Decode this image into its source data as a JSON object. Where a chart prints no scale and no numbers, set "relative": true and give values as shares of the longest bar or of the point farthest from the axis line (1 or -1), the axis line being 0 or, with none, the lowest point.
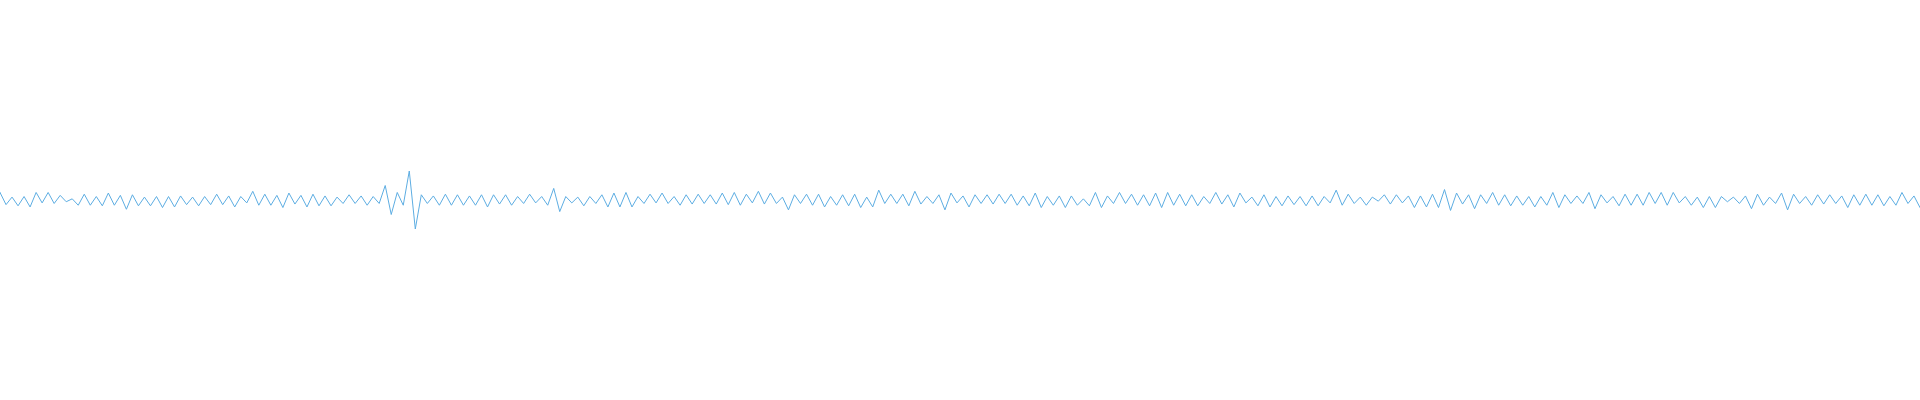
{
  "chart_data": {
    "type": "line",
    "relative": true,
    "marker": "none",
    "categories": [
      null,
      null,
      null,
      null,
      null,
      null,
      null,
      null,
      null,
      null,
      null,
      null,
      null,
      null,
      null,
      null,
      null,
      null,
      null,
      null,
      null,
      null,
      null,
      null,
      null,
      null,
      null,
      null,
      null,
      null,
      null,
      null,
      null,
      null,
      null,
      null,
      null,
      null,
      null,
      null,
      null,
      null,
      null,
      null,
      null,
      null,
      null,
      null,
      null,
      null,
      null,
      null,
      null,
      null,
      null,
      null,
      null,
      null,
      null,
      null,
      null,
      null,
      null,
      null,
      null,
      null,
      null,
      null,
      null,
      null,
      null,
      null,
      null,
      null,
      null,
      null,
      null,
      null,
      null,
      null,
      null,
      null,
      null,
      null,
      null,
      null,
      null,
      null,
      null,
      null,
      null,
      null,
      null,
      null,
      null,
      null,
      null,
      null,
      null,
      null,
      null,
      null,
      null,
      null,
      null,
      null,
      null,
      null,
      null,
      null,
      null,
      null,
      null,
      null,
      null,
      null,
      null,
      null,
      null,
      null,
      null,
      null,
      null,
      null,
      null,
      null,
      null,
      null,
      null,
      null,
      null,
      null,
      null,
      null,
      null,
      null,
      null,
      null,
      null,
      null,
      null,
      null,
      null,
      null,
      null,
      null,
      null,
      null,
      null,
      null,
      null,
      null,
      null,
      null,
      null,
      null,
      null,
      null,
      null,
      null,
      null,
      null,
      null,
      null,
      null,
      null,
      null,
      null,
      null,
      null,
      null,
      null,
      null,
      null,
      null,
      null,
      null,
      null,
      null,
      null,
      null,
      null,
      null,
      null,
      null,
      null,
      null,
      null,
      null,
      null,
      null,
      null,
      null,
      null,
      null,
      null,
      null,
      null,
      null,
      null,
      null,
      null,
      null,
      null,
      null,
      null,
      null,
      null,
      null,
      null,
      null,
      null,
      null,
      null,
      null,
      null,
      null,
      null,
      null,
      null,
      null,
      null,
      null,
      null,
      null,
      null,
      null,
      null,
      null,
      null,
      null,
      null,
      null,
      null,
      null,
      null,
      null,
      null,
      null,
      null,
      null,
      null,
      null,
      null,
      null,
      null,
      null,
      null,
      null,
      null,
      null,
      null,
      null,
      null,
      null,
      null,
      null,
      null,
      null,
      null,
      null,
      null,
      null,
      null,
      null,
      null,
      null,
      null,
      null,
      null,
      null,
      null,
      null,
      null,
      null,
      null,
      null,
      null,
      null,
      null,
      null,
      null,
      null,
      null,
      null,
      null,
      null,
      null,
      null,
      null,
      null,
      null,
      null,
      null,
      null,
      null,
      null,
      null,
      null,
      null,
      null,
      null,
      null,
      null,
      null,
      null,
      null,
      null,
      null,
      null,
      null,
      null,
      null,
      null,
      null,
      null,
      null,
      null,
      null,
      null
    ],
    "series": [
      {
        "color": "#5dade2",
        "values": [
          0.63,
          0.42,
          0.55,
          0.4,
          0.56,
          0.38,
          0.63,
          0.45,
          0.63,
          0.44,
          0.58,
          0.47,
          0.52,
          0.41,
          0.6,
          0.41,
          0.56,
          0.4,
          0.62,
          0.41,
          0.58,
          0.34,
          0.59,
          0.4,
          0.55,
          0.4,
          0.56,
          0.37,
          0.56,
          0.38,
          0.57,
          0.42,
          0.55,
          0.4,
          0.56,
          0.42,
          0.6,
          0.42,
          0.57,
          0.38,
          0.56,
          0.45,
          0.65,
          0.41,
          0.6,
          0.41,
          0.58,
          0.37,
          0.62,
          0.43,
          0.58,
          0.38,
          0.6,
          0.4,
          0.57,
          0.4,
          0.55,
          0.44,
          0.59,
          0.44,
          0.57,
          0.41,
          0.56,
          0.44,
          0.75,
          0.25,
          0.63,
          0.41,
          1,
          0,
          0.59,
          0.44,
          0.57,
          0.41,
          0.6,
          0.41,
          0.59,
          0.41,
          0.57,
          0.41,
          0.59,
          0.38,
          0.59,
          0.43,
          0.59,
          0.41,
          0.56,
          0.44,
          0.6,
          0.45,
          0.56,
          0.41,
          0.7,
          0.3,
          0.56,
          0.45,
          0.55,
          0.4,
          0.56,
          0.44,
          0.59,
          0.38,
          0.62,
          0.38,
          0.63,
          0.38,
          0.56,
          0.44,
          0.6,
          0.45,
          0.62,
          0.44,
          0.56,
          0.41,
          0.59,
          0.43,
          0.6,
          0.44,
          0.59,
          0.43,
          0.62,
          0.42,
          0.63,
          0.41,
          0.6,
          0.45,
          0.65,
          0.43,
          0.62,
          0.44,
          0.55,
          0.33,
          0.59,
          0.44,
          0.6,
          0.41,
          0.6,
          0.38,
          0.56,
          0.41,
          0.59,
          0.4,
          0.6,
          0.37,
          0.55,
          0.38,
          0.67,
          0.44,
          0.6,
          0.44,
          0.6,
          0.4,
          0.65,
          0.43,
          0.56,
          0.44,
          0.59,
          0.33,
          0.62,
          0.45,
          0.57,
          0.38,
          0.59,
          0.44,
          0.59,
          0.43,
          0.6,
          0.44,
          0.6,
          0.41,
          0.57,
          0.4,
          0.62,
          0.37,
          0.56,
          0.41,
          0.57,
          0.37,
          0.57,
          0.41,
          0.52,
          0.4,
          0.63,
          0.37,
          0.57,
          0.44,
          0.63,
          0.44,
          0.6,
          0.41,
          0.59,
          0.4,
          0.62,
          0.37,
          0.63,
          0.41,
          0.6,
          0.4,
          0.59,
          0.4,
          0.56,
          0.44,
          0.63,
          0.43,
          0.59,
          0.38,
          0.62,
          0.45,
          0.55,
          0.4,
          0.59,
          0.38,
          0.56,
          0.4,
          0.57,
          0.42,
          0.56,
          0.4,
          0.57,
          0.4,
          0.56,
          0.45,
          0.67,
          0.41,
          0.6,
          0.44,
          0.55,
          0.41,
          0.55,
          0.48,
          0.59,
          0.43,
          0.59,
          0.45,
          0.57,
          0.37,
          0.57,
          0.38,
          0.6,
          0.37,
          0.68,
          0.32,
          0.62,
          0.43,
          0.59,
          0.35,
          0.59,
          0.44,
          0.63,
          0.41,
          0.59,
          0.4,
          0.57,
          0.41,
          0.56,
          0.38,
          0.56,
          0.41,
          0.63,
          0.37,
          0.59,
          0.44,
          0.57,
          0.44,
          0.63,
          0.35,
          0.59,
          0.45,
          0.56,
          0.4,
          0.6,
          0.41,
          0.6,
          0.41,
          0.63,
          0.44,
          0.63,
          0.41,
          0.63,
          0.45,
          0.56,
          0.41,
          0.55,
          0.37,
          0.56,
          0.37,
          0.56,
          0.47,
          0.55,
          0.44,
          0.57,
          0.35,
          0.6,
          0.41,
          0.55,
          0.44,
          0.62,
          0.33,
          0.6,
          0.44,
          0.56,
          0.41,
          0.59,
          0.43,
          0.59,
          0.44,
          0.57,
          0.37,
          0.59,
          0.41,
          0.6,
          0.41,
          0.59,
          0.4,
          0.56,
          0.41,
          0.63,
          0.44,
          0.57,
          0.37
        ]
      }
    ]
  }
}
